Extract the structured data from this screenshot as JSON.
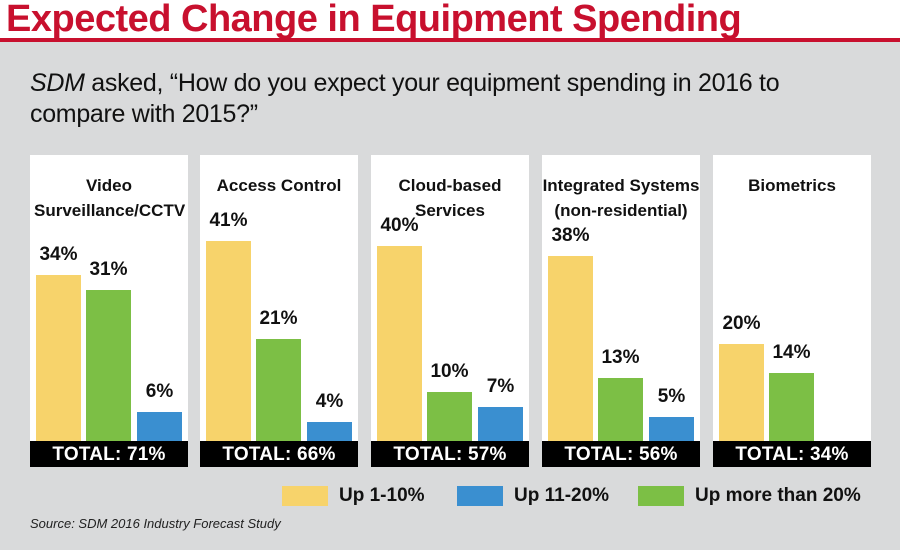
{
  "header": {
    "title": "Expected Change in Equipment Spending"
  },
  "question": {
    "source_name": "SDM",
    "text": " asked, “How do you expect your equipment spending in 2016 to compare with 2015?”"
  },
  "colors": {
    "title_red": "#c8102e",
    "up_1_10": "#f7d36b",
    "up_11_20": "#3a8fd0",
    "up_more_20": "#7cbf45"
  },
  "chart_data": {
    "type": "bar",
    "series": [
      {
        "name": "Up 1-10%",
        "color": "#f7d36b",
        "values": [
          34,
          41,
          40,
          38,
          20
        ]
      },
      {
        "name": "Up more than 20%",
        "color": "#7cbf45",
        "values": [
          31,
          21,
          10,
          13,
          14
        ]
      },
      {
        "name": "Up 11-20%",
        "color": "#3a8fd0",
        "values": [
          6,
          4,
          7,
          5,
          null
        ]
      }
    ],
    "panels": [
      {
        "title": "Video Surveillance/CCTV",
        "total": "TOTAL: 71%",
        "bars": [
          {
            "series": "Up 1-10%",
            "value": 34,
            "label": "34%"
          },
          {
            "series": "Up more than 20%",
            "value": 31,
            "label": "31%"
          },
          {
            "series": "Up 11-20%",
            "value": 6,
            "label": "6%"
          }
        ]
      },
      {
        "title": "Access Control",
        "total": "TOTAL: 66%",
        "bars": [
          {
            "series": "Up 1-10%",
            "value": 41,
            "label": "41%"
          },
          {
            "series": "Up more than 20%",
            "value": 21,
            "label": "21%"
          },
          {
            "series": "Up 11-20%",
            "value": 4,
            "label": "4%"
          }
        ]
      },
      {
        "title": "Cloud-based Services",
        "total": "TOTAL: 57%",
        "bars": [
          {
            "series": "Up 1-10%",
            "value": 40,
            "label": "40%"
          },
          {
            "series": "Up more than 20%",
            "value": 10,
            "label": "10%"
          },
          {
            "series": "Up 11-20%",
            "value": 7,
            "label": "7%"
          }
        ]
      },
      {
        "title": "Integrated Systems (non-residential)",
        "total": "TOTAL: 56%",
        "bars": [
          {
            "series": "Up 1-10%",
            "value": 38,
            "label": "38%"
          },
          {
            "series": "Up more than 20%",
            "value": 13,
            "label": "13%"
          },
          {
            "series": "Up 11-20%",
            "value": 5,
            "label": "5%"
          }
        ]
      },
      {
        "title": "Biometrics",
        "total": "TOTAL: 34%",
        "bars": [
          {
            "series": "Up 1-10%",
            "value": 20,
            "label": "20%"
          },
          {
            "series": "Up more than 20%",
            "value": 14,
            "label": "14%"
          }
        ]
      }
    ],
    "legend": [
      {
        "label": "Up 1-10%",
        "color": "#f7d36b"
      },
      {
        "label": "Up 11-20%",
        "color": "#3a8fd0"
      },
      {
        "label": "Up more than 20%",
        "color": "#7cbf45"
      }
    ],
    "legend_position": "bottom-right"
  },
  "source": "Source: SDM 2016 Industry Forecast Study"
}
